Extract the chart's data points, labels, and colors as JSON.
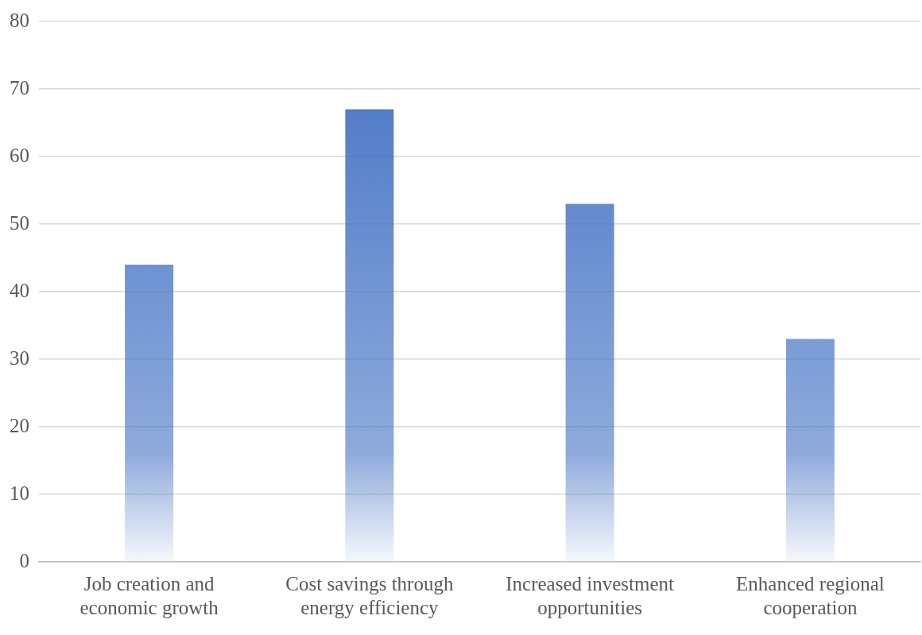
{
  "chart_data": {
    "type": "bar",
    "categories": [
      "Job creation and economic growth",
      "Cost savings through energy efficiency",
      "Increased investment opportunities",
      "Enhanced regional cooperation"
    ],
    "values": [
      44,
      67,
      53,
      33
    ],
    "color": "#4472c4",
    "ylim": [
      0,
      80
    ],
    "yticks": [
      0,
      10,
      20,
      30,
      40,
      50,
      60,
      70,
      80
    ],
    "grid": "y",
    "legend": false
  }
}
